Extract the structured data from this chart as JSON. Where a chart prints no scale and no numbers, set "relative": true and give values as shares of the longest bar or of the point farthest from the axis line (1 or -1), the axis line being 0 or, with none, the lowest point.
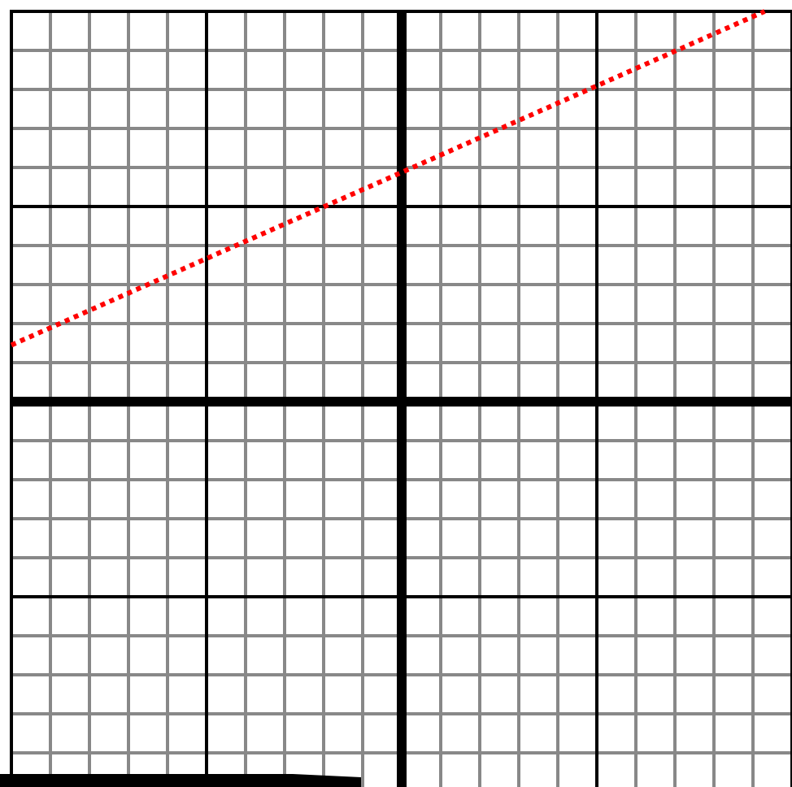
{
  "chart_data": {
    "type": "line",
    "categories": [
      null,
      null,
      null,
      null,
      null
    ],
    "series": [
      {
        "color": "#ff0000",
        "values": [
          0.145,
          0.359,
          0.572,
          0.786,
          1.0
        ]
      }
    ],
    "relative": true,
    "grid": true,
    "line_style": "dotted"
  }
}
